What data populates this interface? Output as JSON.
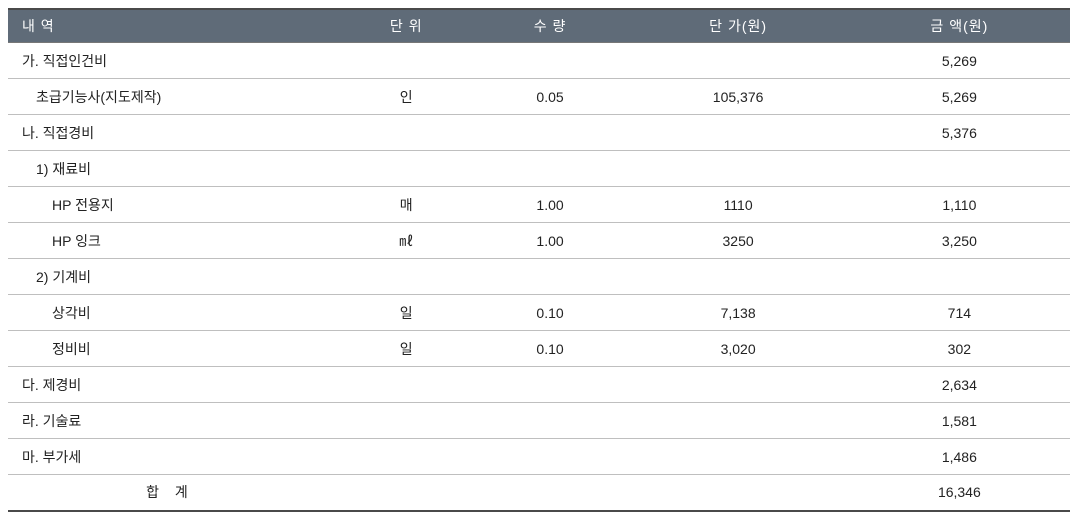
{
  "table": {
    "header": {
      "desc": "내 역",
      "unit": "단 위",
      "qty": "수 량",
      "price": "단 가(원)",
      "amt": "금 액(원)"
    },
    "header_bg": "#5f6b78",
    "header_fg": "#ffffff",
    "row_border": "#bfbfbf",
    "rows": [
      {
        "desc": "가.  직접인건비",
        "unit": "",
        "qty": "",
        "price": "",
        "amt": "5,269",
        "indent": 0
      },
      {
        "desc": "초급기능사(지도제작)",
        "unit": "인",
        "qty": "0.05",
        "price": "105,376",
        "amt": "5,269",
        "indent": 1
      },
      {
        "desc": "나.  직접경비",
        "unit": "",
        "qty": "",
        "price": "",
        "amt": "5,376",
        "indent": 0
      },
      {
        "desc": "1) 재료비",
        "unit": "",
        "qty": "",
        "price": "",
        "amt": "",
        "indent": 1
      },
      {
        "desc": "HP 전용지",
        "unit": "매",
        "qty": "1.00",
        "price": "1110",
        "amt": "1,110",
        "indent": 2
      },
      {
        "desc": "HP 잉크",
        "unit": "㎖",
        "qty": "1.00",
        "price": "3250",
        "amt": "3,250",
        "indent": 2
      },
      {
        "desc": "2) 기계비",
        "unit": "",
        "qty": "",
        "price": "",
        "amt": "",
        "indent": 1
      },
      {
        "desc": "상각비",
        "unit": "일",
        "qty": "0.10",
        "price": "7,138",
        "amt": "714",
        "indent": 2
      },
      {
        "desc": "정비비",
        "unit": "일",
        "qty": "0.10",
        "price": "3,020",
        "amt": "302",
        "indent": 2
      },
      {
        "desc": "다.  제경비",
        "unit": "",
        "qty": "",
        "price": "",
        "amt": "2,634",
        "indent": 0
      },
      {
        "desc": "라.  기술료",
        "unit": "",
        "qty": "",
        "price": "",
        "amt": "1,581",
        "indent": 0
      },
      {
        "desc": "마.  부가세",
        "unit": "",
        "qty": "",
        "price": "",
        "amt": "1,486",
        "indent": 0
      },
      {
        "desc": "합 계",
        "unit": "",
        "qty": "",
        "price": "",
        "amt": "16,346",
        "indent": 0,
        "sum": true
      }
    ]
  }
}
